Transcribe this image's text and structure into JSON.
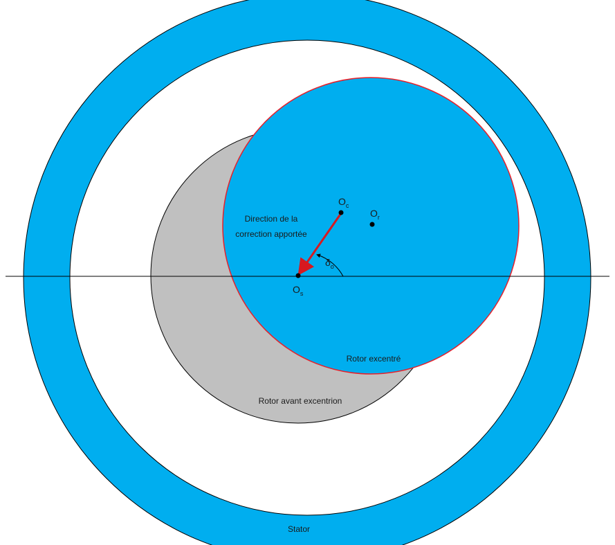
{
  "labels": {
    "direction_line1": "Direction de la",
    "direction_line2": "correction apportée",
    "rotor_excentre": "Rotor excentré",
    "rotor_avant": "Rotor avant excentrion",
    "stator": "Stator"
  },
  "points": {
    "oc": {
      "main": "O",
      "sub": "c"
    },
    "or": {
      "main": "O",
      "sub": "r"
    },
    "os": {
      "main": "O",
      "sub": "s"
    }
  },
  "angle": {
    "main": "δ",
    "sub": "o"
  },
  "colors": {
    "fill_blue": "#00aeef",
    "rotor_grey": "#c0c0c0",
    "rotor_outline_red": "#e8202a",
    "arrow_red": "#d71920",
    "line_black": "#000000"
  }
}
